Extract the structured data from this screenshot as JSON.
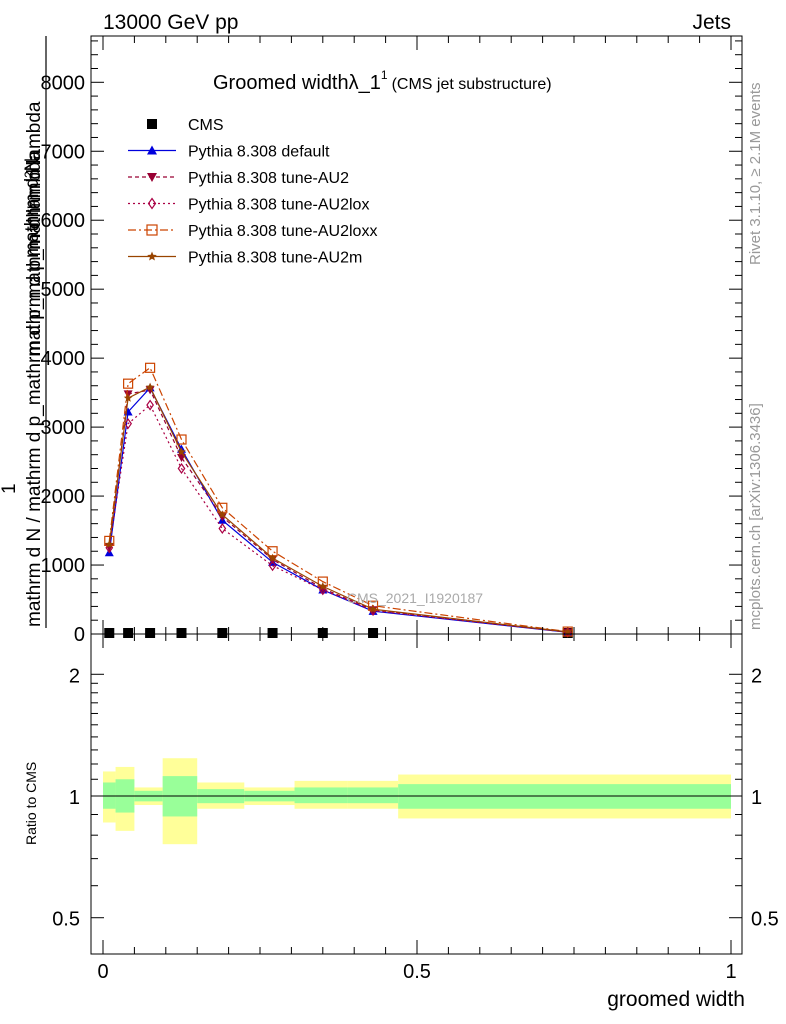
{
  "header": {
    "left": "13000 GeV pp",
    "right": "Jets"
  },
  "side_labels": {
    "rivet": "Rivet 3.1.10, ≥ 2.1M events",
    "site": "mcplots.cern.ch [arXiv:1306.3436]"
  },
  "watermark": "CMS_2021_I1920187",
  "colors": {
    "cms": "#000000",
    "default": "#0000dd",
    "au2": "#990033",
    "au2lox": "#aa0044",
    "au2loxx": "#cc4400",
    "au2m": "#994400",
    "band_inner": "#99ff99",
    "band_outer": "#ffff99"
  },
  "chart_data": [
    {
      "type": "line",
      "title_main": "Groomed width",
      "title_lambda": "λ_1",
      "title_sup": "1",
      "title_sub": "(CMS jet substructure)",
      "ylabel_numerator": "mathrm d²N",
      "ylabel_numerator_2": "mathrm d p_mathrm d lambda",
      "ylabel_one": "1",
      "ylabel_denominator": "mathrm d N / mathrm d p_mathrm d p_mathrm d lambda",
      "ylim": [
        0,
        8700
      ],
      "yticks": [
        0,
        1000,
        2000,
        3000,
        4000,
        5000,
        6000,
        7000,
        8000
      ],
      "ytick_labels": [
        "0",
        "1000",
        "2000",
        "3000",
        "4000",
        "5000",
        "6000",
        "7000",
        "8000"
      ],
      "xlim": [
        -0.02,
        1.0
      ],
      "x": [
        0.01,
        0.04,
        0.075,
        0.125,
        0.19,
        0.27,
        0.35,
        0.43,
        0.74
      ],
      "series": [
        {
          "name": "CMS",
          "key": "cms",
          "values": [
            0,
            0,
            0,
            0,
            0,
            0,
            0,
            0,
            0
          ]
        },
        {
          "name": "Pythia 8.308 default",
          "key": "default",
          "values": [
            1180,
            3220,
            3570,
            2680,
            1650,
            1040,
            640,
            330,
            25
          ]
        },
        {
          "name": "Pythia 8.308 tune-AU2",
          "key": "au2",
          "values": [
            1260,
            3480,
            3540,
            2560,
            1700,
            1080,
            660,
            350,
            28
          ]
        },
        {
          "name": "Pythia 8.308 tune-AU2lox",
          "key": "au2lox",
          "values": [
            1250,
            3050,
            3320,
            2400,
            1530,
            990,
            640,
            340,
            26
          ]
        },
        {
          "name": "Pythia 8.308 tune-AU2loxx",
          "key": "au2loxx",
          "values": [
            1350,
            3630,
            3860,
            2820,
            1830,
            1200,
            760,
            410,
            35
          ]
        },
        {
          "name": "Pythia 8.308 tune-AU2m",
          "key": "au2m",
          "values": [
            1300,
            3420,
            3580,
            2640,
            1730,
            1100,
            690,
            360,
            30
          ]
        }
      ],
      "legend": [
        "CMS",
        "Pythia 8.308 default",
        "Pythia 8.308 tune-AU2",
        "Pythia 8.308 tune-AU2lox",
        "Pythia 8.308 tune-AU2loxx",
        "Pythia 8.308 tune-AU2m"
      ]
    },
    {
      "type": "area",
      "ylabel": "Ratio to CMS",
      "xlabel": "groomed width",
      "scale": "log",
      "ylim": [
        0.4,
        2.35
      ],
      "yticks_major": [
        0.5,
        1,
        2
      ],
      "ytick_labels": [
        "0.5",
        "1",
        "2"
      ],
      "xticks": [
        0,
        0.5,
        1
      ],
      "xtick_labels": [
        "0",
        "0.5",
        "1"
      ],
      "reference": 1,
      "bins": [
        {
          "lo": 0.0,
          "hi": 0.02,
          "inner": [
            0.93,
            1.08
          ],
          "outer": [
            0.86,
            1.15
          ]
        },
        {
          "lo": 0.02,
          "hi": 0.05,
          "inner": [
            0.91,
            1.1
          ],
          "outer": [
            0.82,
            1.18
          ]
        },
        {
          "lo": 0.05,
          "hi": 0.095,
          "inner": [
            0.97,
            1.03
          ],
          "outer": [
            0.95,
            1.05
          ]
        },
        {
          "lo": 0.095,
          "hi": 0.15,
          "inner": [
            0.89,
            1.12
          ],
          "outer": [
            0.76,
            1.24
          ]
        },
        {
          "lo": 0.15,
          "hi": 0.225,
          "inner": [
            0.96,
            1.04
          ],
          "outer": [
            0.93,
            1.08
          ]
        },
        {
          "lo": 0.225,
          "hi": 0.305,
          "inner": [
            0.97,
            1.03
          ],
          "outer": [
            0.95,
            1.05
          ]
        },
        {
          "lo": 0.305,
          "hi": 0.39,
          "inner": [
            0.96,
            1.05
          ],
          "outer": [
            0.93,
            1.09
          ]
        },
        {
          "lo": 0.39,
          "hi": 0.47,
          "inner": [
            0.96,
            1.05
          ],
          "outer": [
            0.93,
            1.09
          ]
        },
        {
          "lo": 0.47,
          "hi": 1.0,
          "inner": [
            0.93,
            1.07
          ],
          "outer": [
            0.88,
            1.13
          ]
        }
      ]
    }
  ]
}
